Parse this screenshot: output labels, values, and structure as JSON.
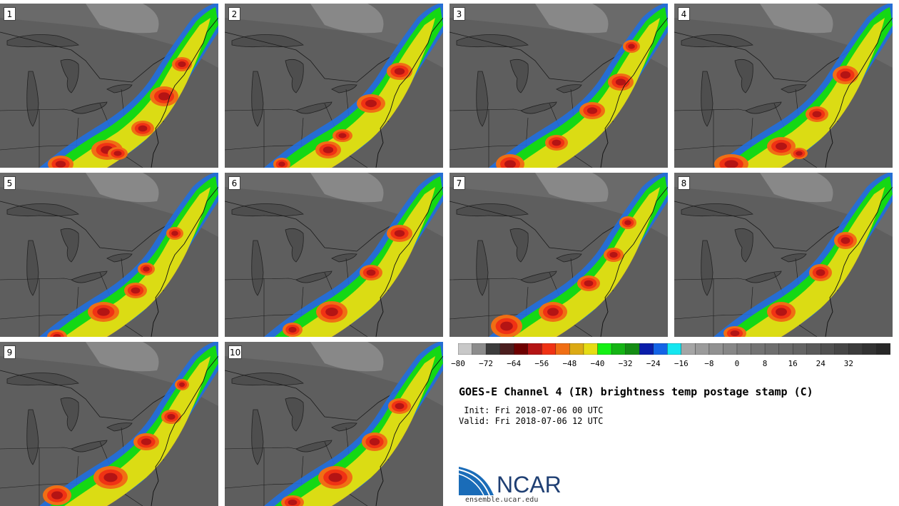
{
  "panels": [
    {
      "label": "1",
      "row": 0,
      "col": 0,
      "storms": [
        [
          85,
          225,
          18,
          12
        ],
        [
          150,
          205,
          22,
          14
        ],
        [
          200,
          175,
          16,
          11
        ],
        [
          230,
          130,
          20,
          14
        ],
        [
          255,
          85,
          14,
          10
        ],
        [
          165,
          210,
          14,
          9
        ]
      ]
    },
    {
      "label": "2",
      "row": 0,
      "col": 1,
      "storms": [
        [
          80,
          225,
          12,
          9
        ],
        [
          145,
          205,
          18,
          12
        ],
        [
          205,
          140,
          20,
          13
        ],
        [
          245,
          95,
          18,
          12
        ],
        [
          165,
          185,
          14,
          9
        ]
      ]
    },
    {
      "label": "3",
      "row": 0,
      "col": 2,
      "storms": [
        [
          85,
          225,
          20,
          14
        ],
        [
          150,
          195,
          16,
          11
        ],
        [
          200,
          150,
          18,
          12
        ],
        [
          240,
          110,
          18,
          12
        ],
        [
          255,
          60,
          12,
          9
        ]
      ]
    },
    {
      "label": "4",
      "row": 0,
      "col": 3,
      "storms": [
        [
          80,
          225,
          24,
          14
        ],
        [
          150,
          200,
          20,
          13
        ],
        [
          200,
          155,
          16,
          11
        ],
        [
          240,
          100,
          18,
          13
        ],
        [
          175,
          210,
          12,
          8
        ]
      ]
    },
    {
      "label": "5",
      "row": 1,
      "col": 0,
      "storms": [
        [
          80,
          230,
          14,
          10
        ],
        [
          145,
          195,
          22,
          14
        ],
        [
          190,
          165,
          16,
          11
        ],
        [
          205,
          135,
          12,
          9
        ],
        [
          245,
          85,
          12,
          9
        ]
      ]
    },
    {
      "label": "6",
      "row": 1,
      "col": 1,
      "storms": [
        [
          95,
          220,
          14,
          10
        ],
        [
          150,
          195,
          22,
          15
        ],
        [
          205,
          140,
          16,
          11
        ],
        [
          245,
          85,
          18,
          12
        ]
      ]
    },
    {
      "label": "7",
      "row": 1,
      "col": 2,
      "storms": [
        [
          80,
          215,
          22,
          16
        ],
        [
          145,
          195,
          20,
          14
        ],
        [
          195,
          155,
          16,
          11
        ],
        [
          230,
          115,
          14,
          10
        ],
        [
          250,
          70,
          12,
          9
        ]
      ]
    },
    {
      "label": "8",
      "row": 1,
      "col": 3,
      "storms": [
        [
          85,
          225,
          16,
          10
        ],
        [
          150,
          195,
          20,
          14
        ],
        [
          205,
          140,
          16,
          12
        ],
        [
          240,
          95,
          16,
          12
        ]
      ]
    },
    {
      "label": "9",
      "row": 2,
      "col": 0,
      "storms": [
        [
          80,
          215,
          20,
          14
        ],
        [
          155,
          190,
          24,
          16
        ],
        [
          205,
          140,
          18,
          12
        ],
        [
          240,
          105,
          14,
          10
        ],
        [
          255,
          60,
          10,
          8
        ]
      ]
    },
    {
      "label": "10",
      "row": 2,
      "col": 1,
      "storms": [
        [
          95,
          225,
          16,
          10
        ],
        [
          155,
          190,
          24,
          16
        ],
        [
          210,
          140,
          18,
          13
        ],
        [
          245,
          90,
          16,
          11
        ]
      ]
    }
  ],
  "colorbar": {
    "colors": [
      "#c8c8c8",
      "#8c8c8c",
      "#3c3c3c",
      "#4b1e1e",
      "#6e0000",
      "#b41414",
      "#f03214",
      "#f06e14",
      "#dcaa14",
      "#e6dc14",
      "#14f014",
      "#14b414",
      "#148c14",
      "#0a1eaa",
      "#1464e6",
      "#14e6f0",
      "#a5a5a5",
      "#9b9b9b",
      "#919191",
      "#878787",
      "#7d7d7d",
      "#737373",
      "#6e6e6e",
      "#696969",
      "#646464",
      "#5a5a5a",
      "#505050",
      "#464646",
      "#3c3c3c",
      "#323232",
      "#282828"
    ],
    "min": -80,
    "step": 4,
    "ticks": [
      "−80",
      "−72",
      "−64",
      "−56",
      "−48",
      "−40",
      "−32",
      "−24",
      "−16",
      "−8",
      "0",
      "8",
      "16",
      "24",
      "32"
    ]
  },
  "title": "GOES-E Channel 4 (IR) brightness temp postage stamp (C)",
  "init_text": " Init: Fri 2018-07-06 00 UTC",
  "valid_text": "Valid: Fri 2018-07-06 12 UTC",
  "logo": {
    "text": "NCAR",
    "url": "ensemble.ucar.edu"
  }
}
